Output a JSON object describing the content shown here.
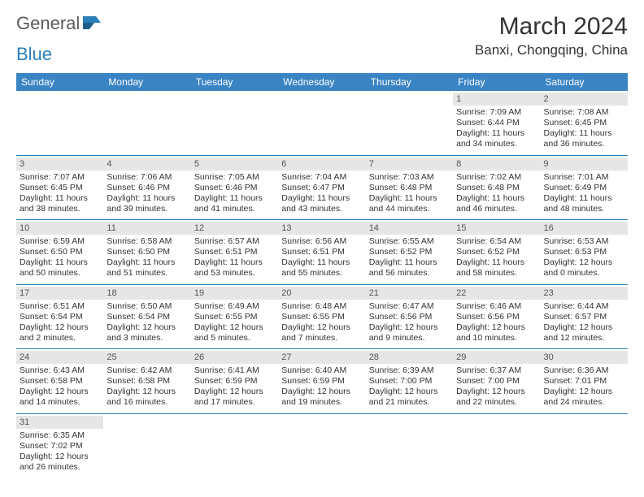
{
  "logo": {
    "part1": "General",
    "part2": "Blue"
  },
  "title": "March 2024",
  "location": "Banxi, Chongqing, China",
  "colors": {
    "header_bg": "#3a84c4",
    "header_text": "#ffffff",
    "daynum_bg": "#e6e6e6",
    "border": "#2a7fba",
    "logo_blue": "#2a7fba"
  },
  "day_headers": [
    "Sunday",
    "Monday",
    "Tuesday",
    "Wednesday",
    "Thursday",
    "Friday",
    "Saturday"
  ],
  "weeks": [
    [
      null,
      null,
      null,
      null,
      null,
      {
        "n": "1",
        "sr": "Sunrise: 7:09 AM",
        "ss": "Sunset: 6:44 PM",
        "dl1": "Daylight: 11 hours",
        "dl2": "and 34 minutes."
      },
      {
        "n": "2",
        "sr": "Sunrise: 7:08 AM",
        "ss": "Sunset: 6:45 PM",
        "dl1": "Daylight: 11 hours",
        "dl2": "and 36 minutes."
      }
    ],
    [
      {
        "n": "3",
        "sr": "Sunrise: 7:07 AM",
        "ss": "Sunset: 6:45 PM",
        "dl1": "Daylight: 11 hours",
        "dl2": "and 38 minutes."
      },
      {
        "n": "4",
        "sr": "Sunrise: 7:06 AM",
        "ss": "Sunset: 6:46 PM",
        "dl1": "Daylight: 11 hours",
        "dl2": "and 39 minutes."
      },
      {
        "n": "5",
        "sr": "Sunrise: 7:05 AM",
        "ss": "Sunset: 6:46 PM",
        "dl1": "Daylight: 11 hours",
        "dl2": "and 41 minutes."
      },
      {
        "n": "6",
        "sr": "Sunrise: 7:04 AM",
        "ss": "Sunset: 6:47 PM",
        "dl1": "Daylight: 11 hours",
        "dl2": "and 43 minutes."
      },
      {
        "n": "7",
        "sr": "Sunrise: 7:03 AM",
        "ss": "Sunset: 6:48 PM",
        "dl1": "Daylight: 11 hours",
        "dl2": "and 44 minutes."
      },
      {
        "n": "8",
        "sr": "Sunrise: 7:02 AM",
        "ss": "Sunset: 6:48 PM",
        "dl1": "Daylight: 11 hours",
        "dl2": "and 46 minutes."
      },
      {
        "n": "9",
        "sr": "Sunrise: 7:01 AM",
        "ss": "Sunset: 6:49 PM",
        "dl1": "Daylight: 11 hours",
        "dl2": "and 48 minutes."
      }
    ],
    [
      {
        "n": "10",
        "sr": "Sunrise: 6:59 AM",
        "ss": "Sunset: 6:50 PM",
        "dl1": "Daylight: 11 hours",
        "dl2": "and 50 minutes."
      },
      {
        "n": "11",
        "sr": "Sunrise: 6:58 AM",
        "ss": "Sunset: 6:50 PM",
        "dl1": "Daylight: 11 hours",
        "dl2": "and 51 minutes."
      },
      {
        "n": "12",
        "sr": "Sunrise: 6:57 AM",
        "ss": "Sunset: 6:51 PM",
        "dl1": "Daylight: 11 hours",
        "dl2": "and 53 minutes."
      },
      {
        "n": "13",
        "sr": "Sunrise: 6:56 AM",
        "ss": "Sunset: 6:51 PM",
        "dl1": "Daylight: 11 hours",
        "dl2": "and 55 minutes."
      },
      {
        "n": "14",
        "sr": "Sunrise: 6:55 AM",
        "ss": "Sunset: 6:52 PM",
        "dl1": "Daylight: 11 hours",
        "dl2": "and 56 minutes."
      },
      {
        "n": "15",
        "sr": "Sunrise: 6:54 AM",
        "ss": "Sunset: 6:52 PM",
        "dl1": "Daylight: 11 hours",
        "dl2": "and 58 minutes."
      },
      {
        "n": "16",
        "sr": "Sunrise: 6:53 AM",
        "ss": "Sunset: 6:53 PM",
        "dl1": "Daylight: 12 hours",
        "dl2": "and 0 minutes."
      }
    ],
    [
      {
        "n": "17",
        "sr": "Sunrise: 6:51 AM",
        "ss": "Sunset: 6:54 PM",
        "dl1": "Daylight: 12 hours",
        "dl2": "and 2 minutes."
      },
      {
        "n": "18",
        "sr": "Sunrise: 6:50 AM",
        "ss": "Sunset: 6:54 PM",
        "dl1": "Daylight: 12 hours",
        "dl2": "and 3 minutes."
      },
      {
        "n": "19",
        "sr": "Sunrise: 6:49 AM",
        "ss": "Sunset: 6:55 PM",
        "dl1": "Daylight: 12 hours",
        "dl2": "and 5 minutes."
      },
      {
        "n": "20",
        "sr": "Sunrise: 6:48 AM",
        "ss": "Sunset: 6:55 PM",
        "dl1": "Daylight: 12 hours",
        "dl2": "and 7 minutes."
      },
      {
        "n": "21",
        "sr": "Sunrise: 6:47 AM",
        "ss": "Sunset: 6:56 PM",
        "dl1": "Daylight: 12 hours",
        "dl2": "and 9 minutes."
      },
      {
        "n": "22",
        "sr": "Sunrise: 6:46 AM",
        "ss": "Sunset: 6:56 PM",
        "dl1": "Daylight: 12 hours",
        "dl2": "and 10 minutes."
      },
      {
        "n": "23",
        "sr": "Sunrise: 6:44 AM",
        "ss": "Sunset: 6:57 PM",
        "dl1": "Daylight: 12 hours",
        "dl2": "and 12 minutes."
      }
    ],
    [
      {
        "n": "24",
        "sr": "Sunrise: 6:43 AM",
        "ss": "Sunset: 6:58 PM",
        "dl1": "Daylight: 12 hours",
        "dl2": "and 14 minutes."
      },
      {
        "n": "25",
        "sr": "Sunrise: 6:42 AM",
        "ss": "Sunset: 6:58 PM",
        "dl1": "Daylight: 12 hours",
        "dl2": "and 16 minutes."
      },
      {
        "n": "26",
        "sr": "Sunrise: 6:41 AM",
        "ss": "Sunset: 6:59 PM",
        "dl1": "Daylight: 12 hours",
        "dl2": "and 17 minutes."
      },
      {
        "n": "27",
        "sr": "Sunrise: 6:40 AM",
        "ss": "Sunset: 6:59 PM",
        "dl1": "Daylight: 12 hours",
        "dl2": "and 19 minutes."
      },
      {
        "n": "28",
        "sr": "Sunrise: 6:39 AM",
        "ss": "Sunset: 7:00 PM",
        "dl1": "Daylight: 12 hours",
        "dl2": "and 21 minutes."
      },
      {
        "n": "29",
        "sr": "Sunrise: 6:37 AM",
        "ss": "Sunset: 7:00 PM",
        "dl1": "Daylight: 12 hours",
        "dl2": "and 22 minutes."
      },
      {
        "n": "30",
        "sr": "Sunrise: 6:36 AM",
        "ss": "Sunset: 7:01 PM",
        "dl1": "Daylight: 12 hours",
        "dl2": "and 24 minutes."
      }
    ],
    [
      {
        "n": "31",
        "sr": "Sunrise: 6:35 AM",
        "ss": "Sunset: 7:02 PM",
        "dl1": "Daylight: 12 hours",
        "dl2": "and 26 minutes."
      },
      null,
      null,
      null,
      null,
      null,
      null
    ]
  ]
}
